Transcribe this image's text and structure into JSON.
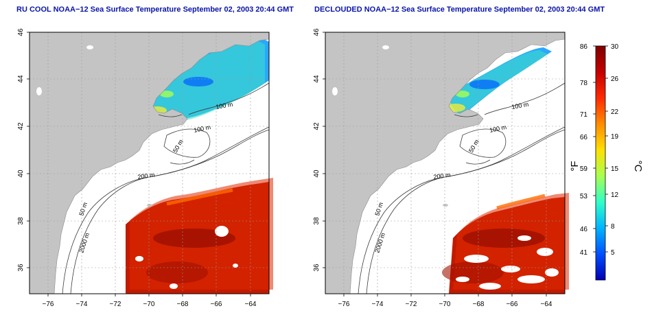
{
  "panels": [
    {
      "title": "RU COOL NOAA−12 Sea Surface Temperature September 02, 2003 20:44 GMT",
      "x_ticks": [
        "−76",
        "−74",
        "−72",
        "−70",
        "−68",
        "−66",
        "−64"
      ],
      "y_ticks": [
        "46",
        "44",
        "42",
        "40",
        "38",
        "36"
      ],
      "contour_labels": [
        "100 m",
        "100 m",
        "50 m",
        "200 m",
        "50 m",
        "2000 m"
      ]
    },
    {
      "title": "DECLOUDED NOAA−12 Sea Surface Temperature September 02, 2003 20:44 GMT",
      "x_ticks": [
        "−76",
        "−74",
        "−72",
        "−70",
        "−68",
        "−66",
        "−64"
      ],
      "y_ticks": [
        "46",
        "44",
        "42",
        "40",
        "38",
        "36"
      ],
      "contour_labels": [
        "100 m",
        "100 m",
        "50 m",
        "200 m",
        "50 m",
        "2000 m"
      ]
    }
  ],
  "colorbar": {
    "f_unit": "°F",
    "c_unit": "°C",
    "f_ticks": [
      "86",
      "78",
      "71",
      "66",
      "59",
      "53",
      "46",
      "41"
    ],
    "c_ticks": [
      "30",
      "26",
      "22",
      "19",
      "15",
      "12",
      "8",
      "5"
    ],
    "colors": [
      "#7f0000",
      "#c40000",
      "#ff2a00",
      "#ff8c00",
      "#ffe000",
      "#a8ff50",
      "#30ffc8",
      "#00b4ff",
      "#0050ff",
      "#0000b4"
    ]
  },
  "colors": {
    "land": "#c4c4c4",
    "ocean_no_data": "#ffffff",
    "title_text": "#0a14a8",
    "grid": "#9a9a9a"
  }
}
